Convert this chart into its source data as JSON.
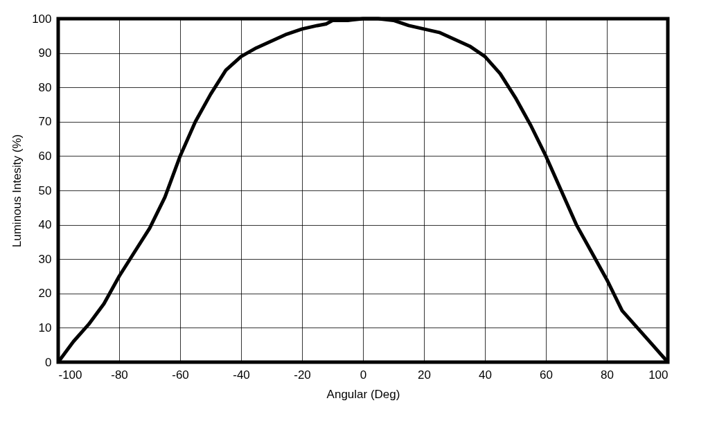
{
  "chart_data": {
    "type": "line",
    "xlabel": "Angular (Deg)",
    "ylabel": "Luminous Intesity (%)",
    "x": [
      -100,
      -95,
      -90,
      -85,
      -80,
      -75,
      -70,
      -65,
      -60,
      -55,
      -50,
      -45,
      -40,
      -35,
      -30,
      -25,
      -20,
      -15,
      -12,
      -10,
      -5,
      0,
      5,
      10,
      15,
      20,
      25,
      30,
      35,
      40,
      45,
      50,
      55,
      60,
      65,
      70,
      75,
      80,
      85,
      90,
      95,
      100
    ],
    "series": [
      {
        "color": "#000000",
        "values": [
          0,
          6,
          11,
          17,
          25,
          32,
          39,
          48,
          60,
          70,
          78,
          85,
          89,
          91.5,
          93.5,
          95.5,
          97,
          98,
          98.5,
          99.5,
          99.5,
          100,
          100,
          99.5,
          98,
          97,
          96,
          94,
          92,
          89,
          84,
          77,
          69,
          60,
          50,
          40,
          32,
          24,
          15,
          10,
          5,
          0
        ]
      }
    ],
    "xlim": [
      -100,
      100
    ],
    "ylim": [
      0,
      100
    ],
    "xticks": [
      -100,
      -80,
      -60,
      -40,
      -20,
      0,
      20,
      40,
      60,
      80,
      100
    ],
    "yticks": [
      0,
      10,
      20,
      30,
      40,
      50,
      60,
      70,
      80,
      90,
      100
    ],
    "grid": true,
    "marker": "none",
    "line_style": "solid"
  }
}
